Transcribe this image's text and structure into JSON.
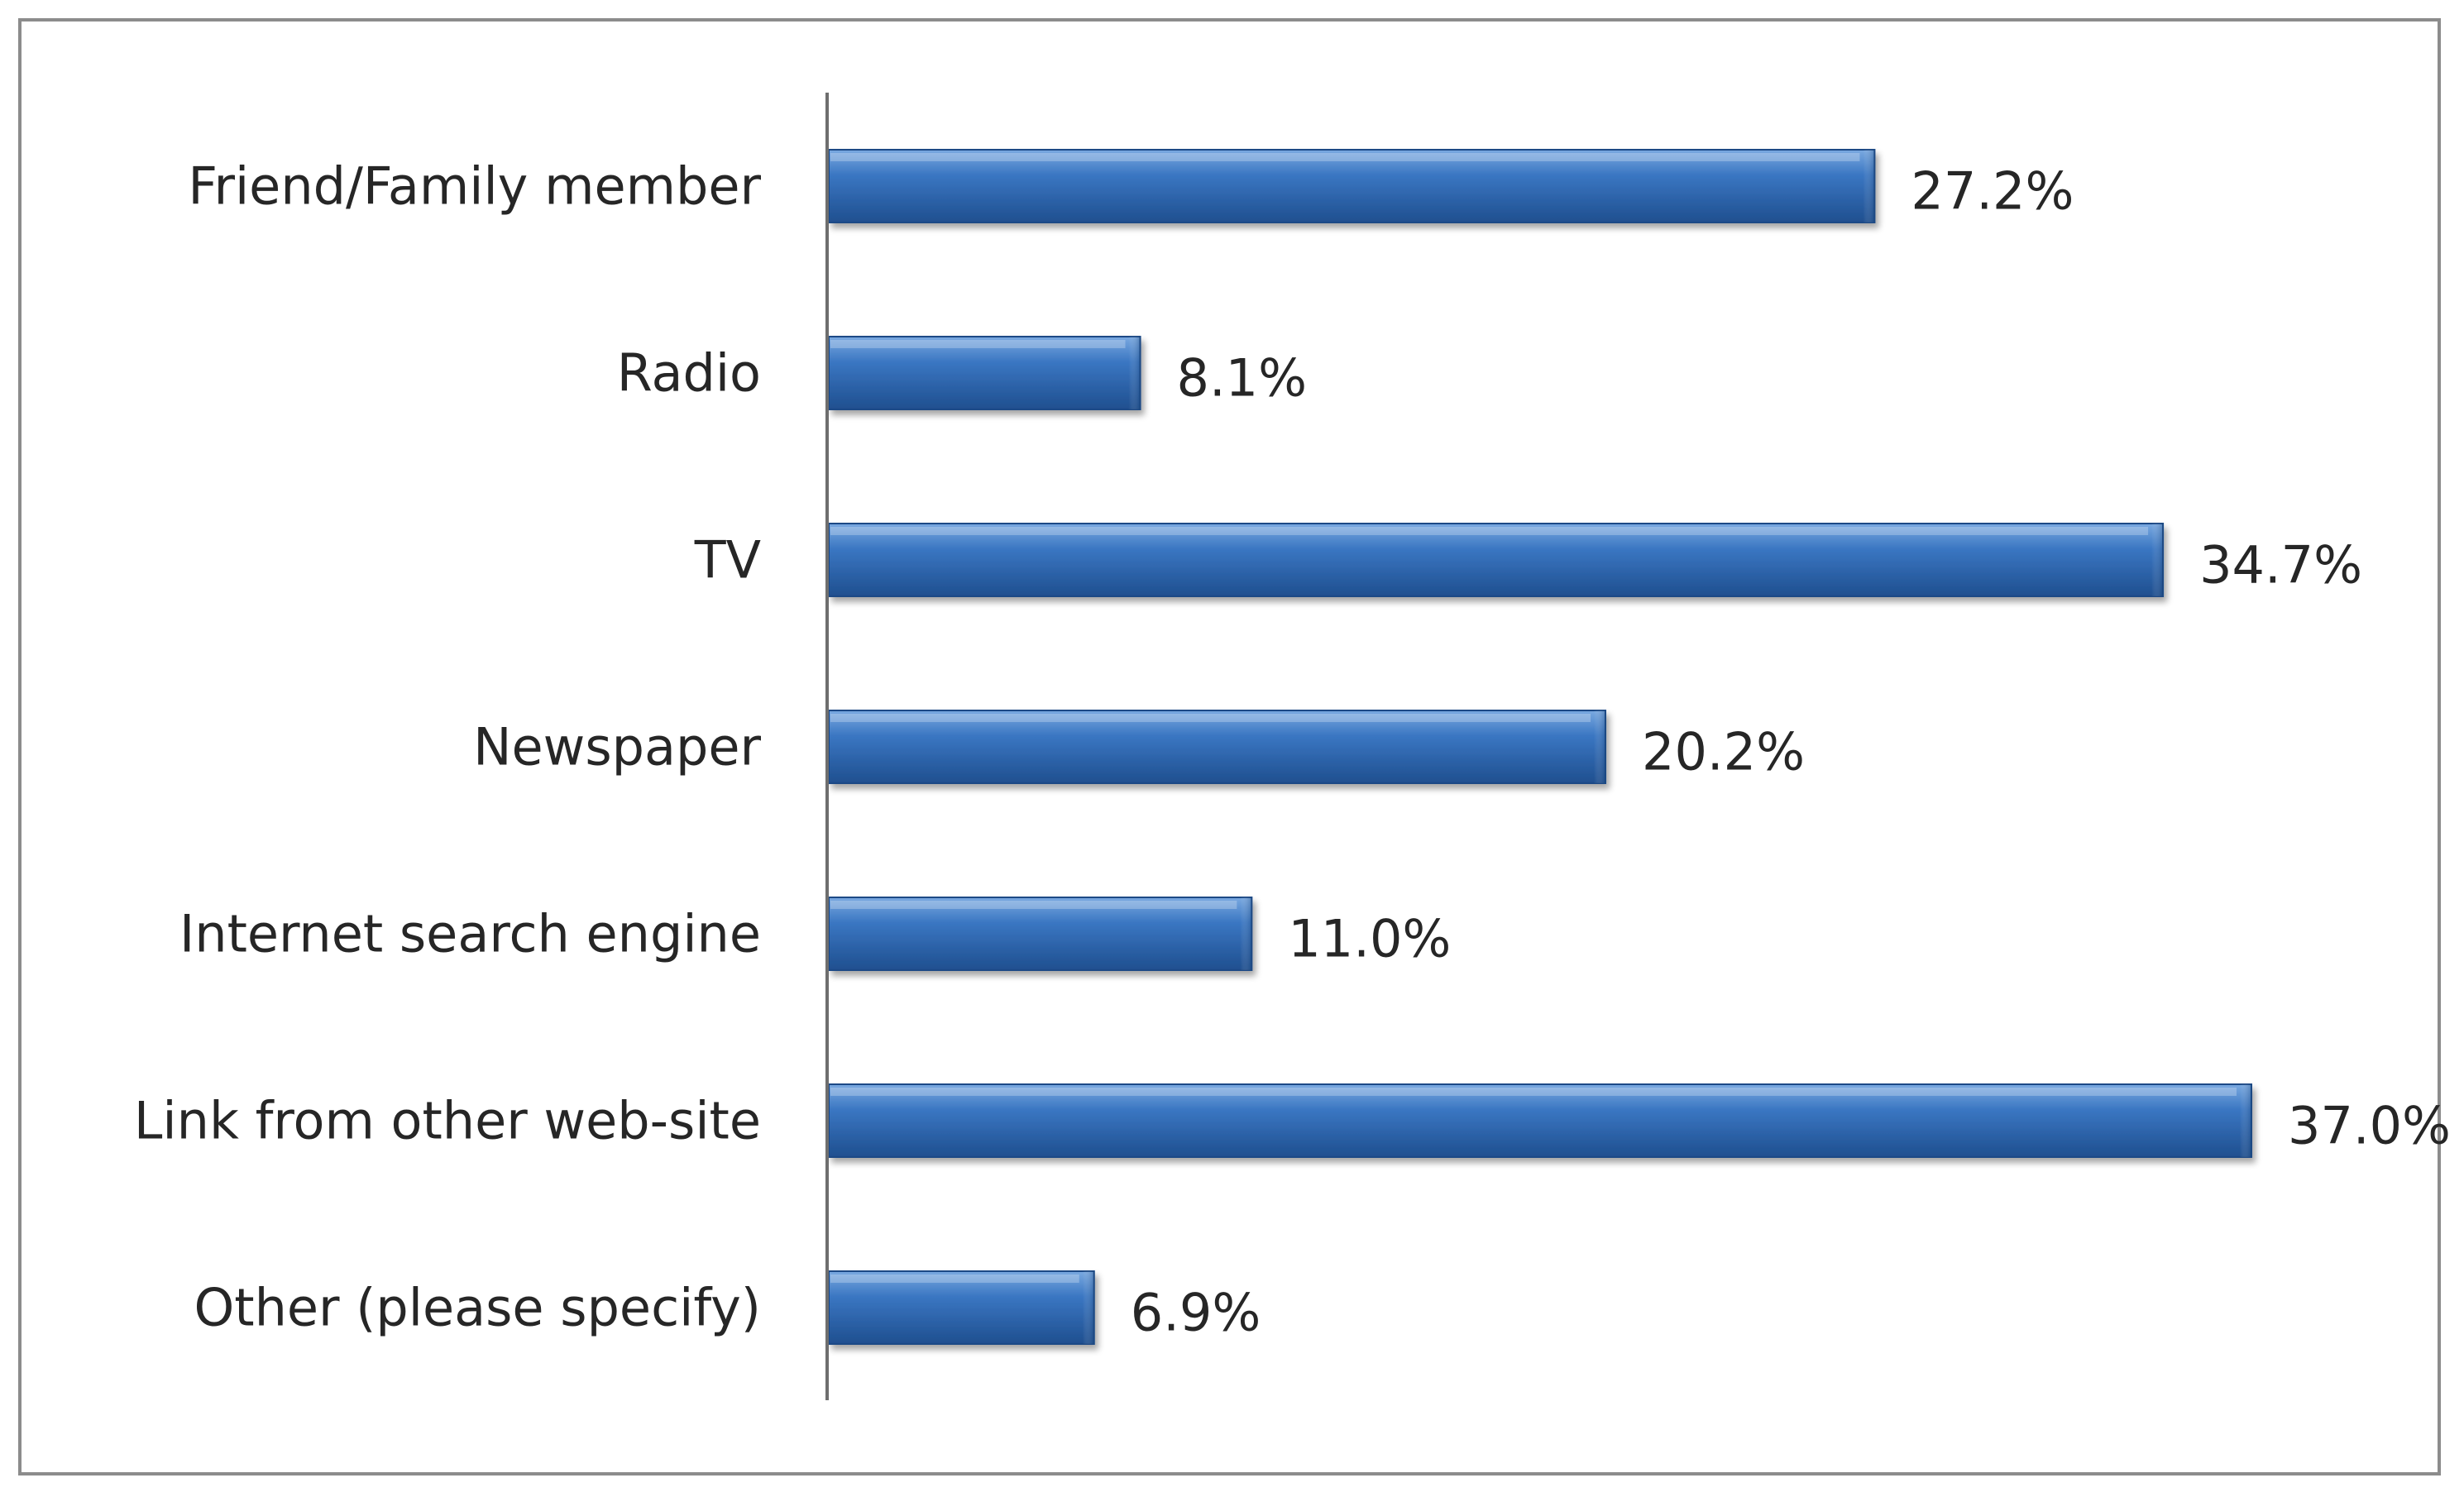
{
  "chart_data": {
    "type": "bar",
    "orientation": "horizontal",
    "categories": [
      "Friend/Family member",
      "Radio",
      "TV",
      "Newspaper",
      "Internet search engine",
      "Link from other web-site",
      "Other (please specify)"
    ],
    "values": [
      27.2,
      8.1,
      34.7,
      20.2,
      11.0,
      37.0,
      6.9
    ],
    "value_labels": [
      "27.2%",
      "8.1%",
      "34.7%",
      "20.2%",
      "11.0%",
      "37.0%",
      "6.9%"
    ],
    "title": "",
    "xlabel": "",
    "ylabel": "",
    "xlim": [
      0,
      37.0
    ],
    "grid": false,
    "legend": "none",
    "colors": {
      "bar_top": "#7aa9e0",
      "bar_mid": "#3a76c2",
      "bar_bottom": "#1f4f8f",
      "bar_edge": "#1d4a86",
      "axis": "#6e6e6e",
      "text": "#262626",
      "frame": "#8c8c8c"
    }
  }
}
